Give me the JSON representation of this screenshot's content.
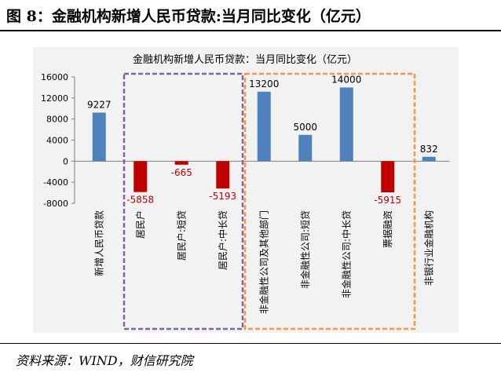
{
  "figure_title": "图 8：金融机构新增人民币贷款:当月同比变化（亿元）",
  "source_note": "资料来源：WIND，财信研究院",
  "colors": {
    "positive": "#4f81bd",
    "negative": "#c00000",
    "group1_box": "#8064a2",
    "group2_box": "#f79646"
  },
  "chart_data": {
    "type": "bar",
    "title": "金融机构新增人民币贷款：当月同比变化（亿元）",
    "xlabel": "",
    "ylabel": "",
    "ylim": [
      -8000,
      16000
    ],
    "yticks": [
      16000,
      12000,
      8000,
      4000,
      0,
      -4000,
      -8000
    ],
    "grid": false,
    "categories": [
      "新增人民币贷款",
      "居民户",
      "居民户:短贷",
      "居民户:中长贷",
      "非金融性公司及其他部门",
      "非金融性公司:短贷",
      "非金融性公司:中长贷",
      "票据融资",
      "非银行业金融机构"
    ],
    "values": [
      9227,
      -5858,
      -665,
      -5193,
      13200,
      5000,
      14000,
      -5915,
      832
    ]
  }
}
